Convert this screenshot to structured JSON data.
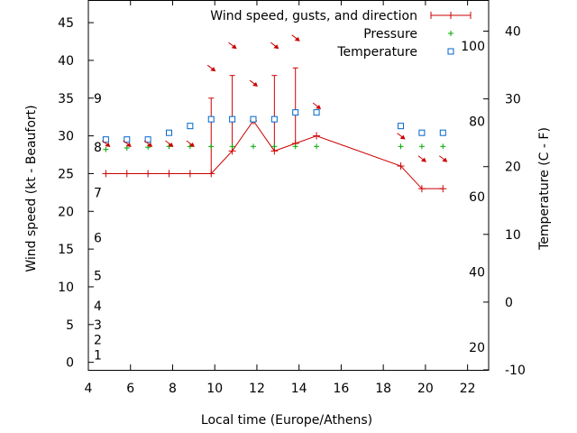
{
  "chart_data": {
    "type": "line",
    "xlabel": "Local time (Europe/Athens)",
    "ylabel_left": "Wind speed (kt - Beaufort)",
    "ylabel_right": "Temperature (C - F)",
    "xlim": [
      4,
      23
    ],
    "ylim_left": [
      -1,
      48
    ],
    "ylim_right_celsius": [
      -10,
      44.6
    ],
    "x_ticks": [
      "4",
      "6",
      "8",
      "10",
      "12",
      "14",
      "16",
      "18",
      "20",
      "22"
    ],
    "y_left_ticks": [
      "0",
      "5",
      "10",
      "15",
      "20",
      "25",
      "30",
      "35",
      "40",
      "45"
    ],
    "y_right_celsius_ticks": [
      "-10",
      "0",
      "10",
      "20",
      "30",
      "40"
    ],
    "y_right_fahrenheit_ticks": [
      "20",
      "40",
      "60",
      "80",
      "100"
    ],
    "beaufort_labels": [
      "1",
      "2",
      "3",
      "4",
      "5",
      "6",
      "7",
      "8",
      "9"
    ],
    "beaufort_values_kt": [
      1,
      3,
      5,
      7.5,
      11.5,
      16.5,
      22.5,
      28.5,
      35
    ],
    "legend": {
      "placement": "top-right",
      "entries": [
        "Wind speed, gusts, and direction",
        "Pressure",
        "Temperature"
      ]
    },
    "colors": {
      "wind": "#cc0000",
      "pressure": "#00aa00",
      "temperature": "#0066cc",
      "axis": "#000000"
    },
    "series": [
      {
        "name": "Wind speed, gusts, and direction",
        "axis": "left",
        "x": [
          4.83,
          5.83,
          6.83,
          7.83,
          8.83,
          9.83,
          10.83,
          11.83,
          12.83,
          13.83,
          14.83,
          18.83,
          19.83,
          20.83
        ],
        "values": [
          25,
          25,
          25,
          25,
          25,
          25,
          28,
          32,
          28,
          29,
          30,
          26,
          23,
          23
        ],
        "gusts": [
          null,
          null,
          null,
          null,
          null,
          35,
          38,
          32,
          38,
          39,
          null,
          null,
          null,
          null
        ],
        "direction_arrows_kt": [
          29,
          29,
          29,
          29,
          29,
          39,
          42,
          37,
          42,
          43,
          34,
          30,
          27,
          27
        ]
      },
      {
        "name": "Pressure",
        "axis": "left",
        "x": [
          4.83,
          5.83,
          6.83,
          7.83,
          8.83,
          9.83,
          10.83,
          11.83,
          12.83,
          13.83,
          14.83,
          18.83,
          19.83,
          20.83
        ],
        "values": [
          28.2,
          28.4,
          28.5,
          28.6,
          28.6,
          28.6,
          28.6,
          28.6,
          28.6,
          28.6,
          28.6,
          28.6,
          28.6,
          28.6
        ]
      },
      {
        "name": "Temperature",
        "axis": "right",
        "unit": "C",
        "x": [
          4.83,
          5.83,
          6.83,
          7.83,
          8.83,
          9.83,
          10.83,
          11.83,
          12.83,
          13.83,
          14.83,
          18.83,
          19.83,
          20.83
        ],
        "values": [
          24,
          24,
          24,
          25,
          26,
          27,
          27,
          27,
          27,
          28,
          28,
          26,
          25,
          25
        ]
      }
    ]
  }
}
